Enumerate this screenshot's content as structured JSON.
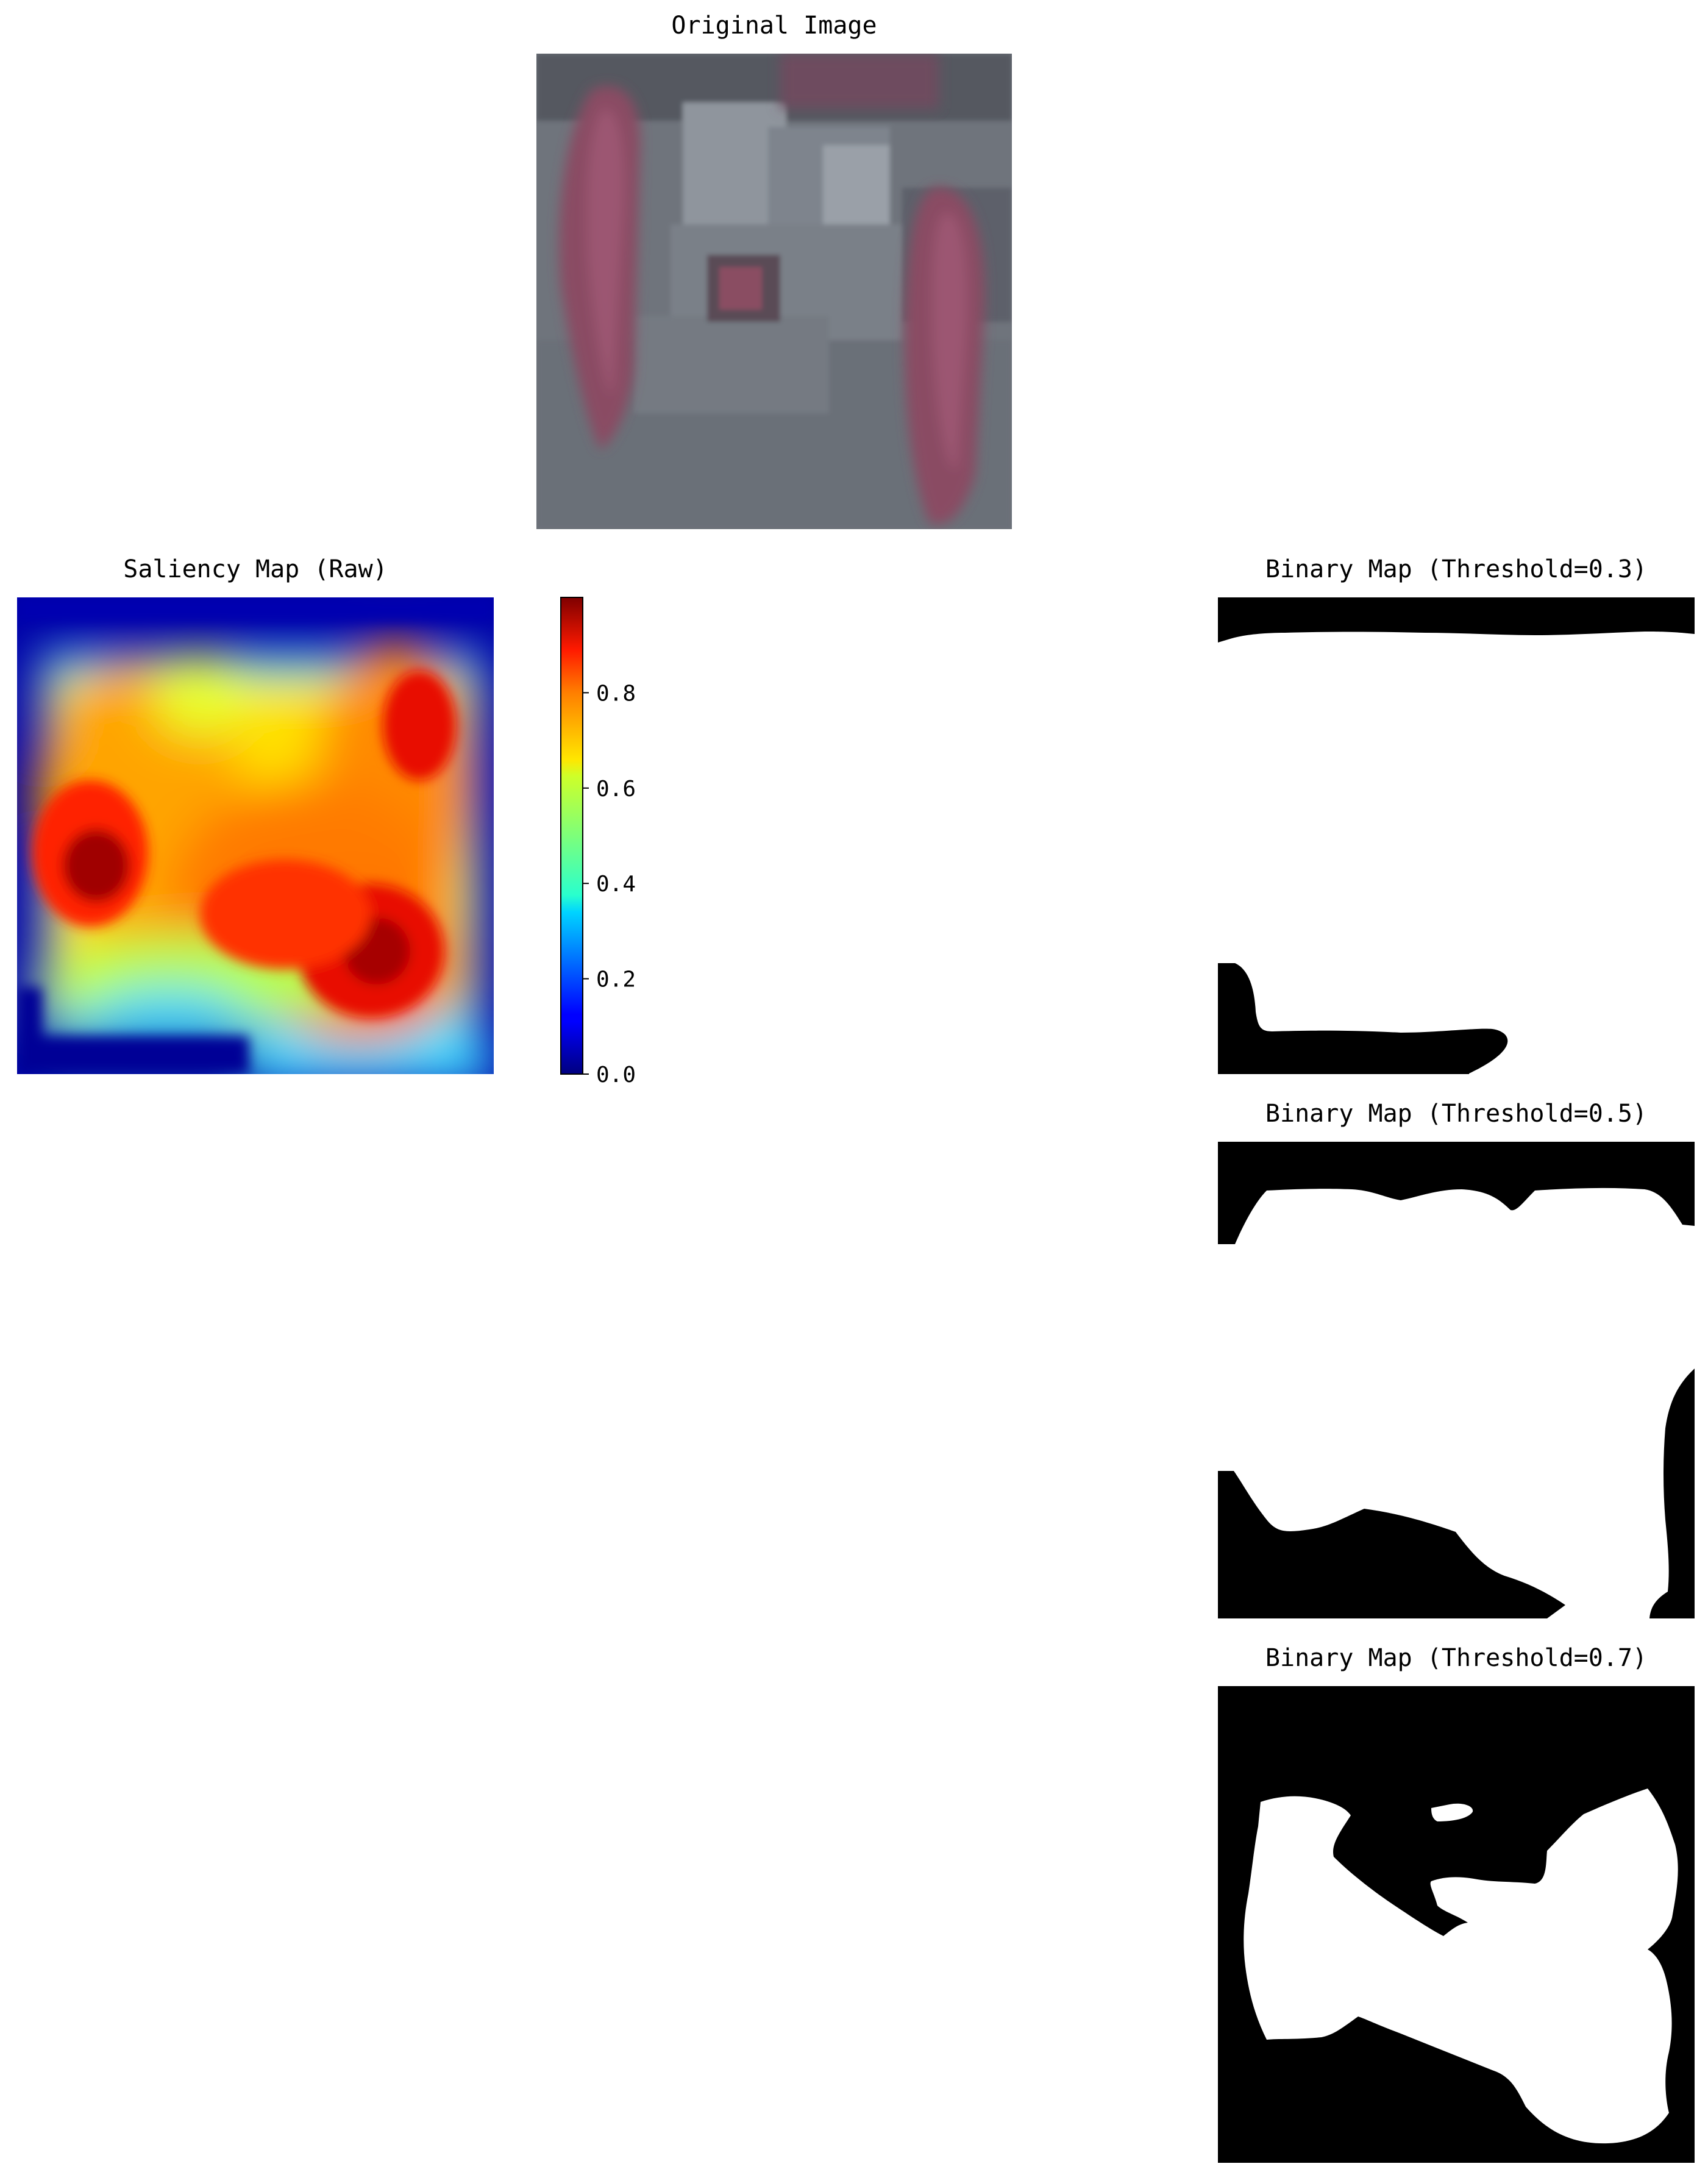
{
  "figure": {
    "original": {
      "title": "Original Image"
    },
    "saliency": {
      "title": "Saliency Map (Raw)"
    },
    "colorbar": {
      "colormap": "jet",
      "range": [
        0.0,
        1.0
      ],
      "ticks": [
        "0.0",
        "0.2",
        "0.4",
        "0.6",
        "0.8"
      ]
    },
    "binary_maps": [
      {
        "title": "Binary Map (Threshold=0.3)",
        "threshold": 0.3
      },
      {
        "title": "Binary Map (Threshold=0.5)",
        "threshold": 0.5
      },
      {
        "title": "Binary Map (Threshold=0.7)",
        "threshold": 0.7
      }
    ],
    "colors": {
      "background": "#ffffff",
      "binary_fg": "#ffffff",
      "binary_bg": "#000000",
      "photo_base": "#6e737b",
      "photo_accent": "#8a4a63"
    }
  }
}
